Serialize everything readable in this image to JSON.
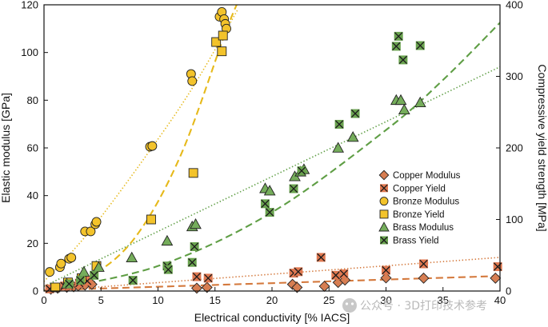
{
  "watermark": {
    "text": "公众号 · 3D打印技术参考"
  },
  "chart_data": {
    "type": "scatter",
    "title": "",
    "xlabel": "Electrical conductivity [% IACS]",
    "ylabel": "Elastic modulus [GPa]",
    "y2label": "Compressive yield strength [MPa]",
    "xlim": [
      0,
      40
    ],
    "ylim": [
      0,
      120
    ],
    "y2lim": [
      0,
      400
    ],
    "xticks": [
      0,
      5,
      10,
      15,
      20,
      25,
      30,
      35,
      40
    ],
    "yticks": [
      0,
      20,
      40,
      60,
      80,
      100,
      120
    ],
    "y2ticks": [
      0,
      100,
      200,
      300,
      400
    ],
    "grid": false,
    "legend_position": "right-center",
    "series": [
      {
        "name": "Copper Modulus",
        "axis": "left",
        "marker": "diamond",
        "fill": "#d77e52",
        "edge": "#222222",
        "x": [
          0.6,
          1.2,
          2.0,
          2.6,
          3.0,
          3.6,
          4.2,
          13.4,
          14.3,
          21.8,
          22.2,
          24.6,
          25.8,
          26.4,
          30.0,
          33.3,
          39.6
        ],
        "y": [
          0.8,
          1.2,
          1.6,
          1.8,
          2.2,
          2.5,
          2.8,
          1.2,
          1.5,
          2.8,
          1.5,
          2.0,
          3.6,
          4.6,
          5.5,
          5.4,
          5.4
        ],
        "fit": {
          "style": "dashed",
          "color": "#d4793d",
          "x": [
            0,
            40
          ],
          "y": [
            0.3,
            6.3
          ]
        }
      },
      {
        "name": "Copper Yield",
        "axis": "right",
        "marker": "x-box",
        "fill": "#e07850",
        "edge": "#222222",
        "x": [
          0.5,
          1.0,
          1.8,
          2.2,
          3.1,
          3.8,
          13.4,
          14.4,
          21.9,
          22.3,
          24.3,
          25.6,
          26.3,
          30.0,
          33.3,
          39.8
        ],
        "y": [
          3,
          5,
          7,
          8,
          11,
          14,
          20,
          18,
          25,
          27,
          47,
          22,
          24,
          29,
          38,
          34
        ],
        "fit": {
          "style": "dotted",
          "color": "#d4793d",
          "x": [
            0,
            40
          ],
          "y": [
            0,
            47
          ]
        }
      },
      {
        "name": "Bronze Modulus",
        "axis": "left",
        "marker": "circle",
        "fill": "#f3c32b",
        "edge": "#222222",
        "x": [
          0.5,
          1.4,
          1.5,
          2.2,
          2.4,
          3.6,
          4.1,
          4.5,
          4.6,
          9.3,
          9.5,
          12.9,
          13.0,
          15.4,
          15.6,
          15.8,
          15.9,
          16.0
        ],
        "y": [
          8,
          10,
          11.5,
          13.5,
          14,
          25,
          25,
          28,
          29,
          60.5,
          60.8,
          91,
          88,
          115,
          117,
          114,
          112,
          110
        ],
        "fit": {
          "style": "dotted",
          "color": "#e6b91a",
          "x": [
            0,
            4,
            9,
            13,
            17
          ],
          "y": [
            4,
            25,
            57,
            85,
            118
          ]
        }
      },
      {
        "name": "Bronze Yield",
        "axis": "right",
        "marker": "square",
        "fill": "#f3c32b",
        "edge": "#222222",
        "x": [
          1.0,
          2.1,
          3.3,
          4.6,
          9.4,
          13.1,
          15.1,
          15.6,
          15.7
        ],
        "y": [
          5,
          12,
          18,
          35,
          100,
          165,
          348,
          335,
          357
        ],
        "fit": {
          "style": "dashed",
          "color": "#e6b91a",
          "x": [
            0,
            4,
            8,
            12,
            16,
            17.5
          ],
          "y": [
            0,
            20,
            75,
            190,
            365,
            420
          ]
        }
      },
      {
        "name": "Brass Modulus",
        "axis": "left",
        "marker": "triangle",
        "fill": "#75ad5b",
        "edge": "#222222",
        "x": [
          2.0,
          3.5,
          4.8,
          7.7,
          10.8,
          13.0,
          13.3,
          19.4,
          19.8,
          22.0,
          22.5,
          22.8,
          25.8,
          27.1,
          30.9,
          31.3,
          31.6,
          33.0
        ],
        "y": [
          3,
          8,
          10,
          14,
          21,
          27,
          28,
          43,
          42,
          48,
          50,
          51,
          60,
          64.5,
          80,
          80,
          76,
          79
        ],
        "fit": {
          "style": "dotted",
          "color": "#5f9e45",
          "x": [
            0,
            40
          ],
          "y": [
            2,
            94
          ]
        }
      },
      {
        "name": "Brass Yield",
        "axis": "right",
        "marker": "x-box",
        "fill": "#6aa34f",
        "edge": "#222222",
        "x": [
          2.2,
          3.2,
          4.4,
          7.8,
          10.8,
          10.9,
          13.0,
          13.2,
          19.4,
          19.8,
          21.9,
          22.6,
          25.9,
          27.3,
          30.9,
          31.1,
          31.5,
          33.0
        ],
        "y": [
          10,
          15,
          22,
          15,
          35,
          30,
          40,
          62,
          122,
          110,
          143,
          168,
          233,
          248,
          342,
          356,
          323,
          343
        ],
        "fit": {
          "style": "dashed",
          "color": "#5f9e45",
          "x": [
            0,
            10,
            20,
            30,
            35,
            40
          ],
          "y": [
            0,
            35,
            110,
            225,
            295,
            375
          ]
        }
      }
    ]
  }
}
